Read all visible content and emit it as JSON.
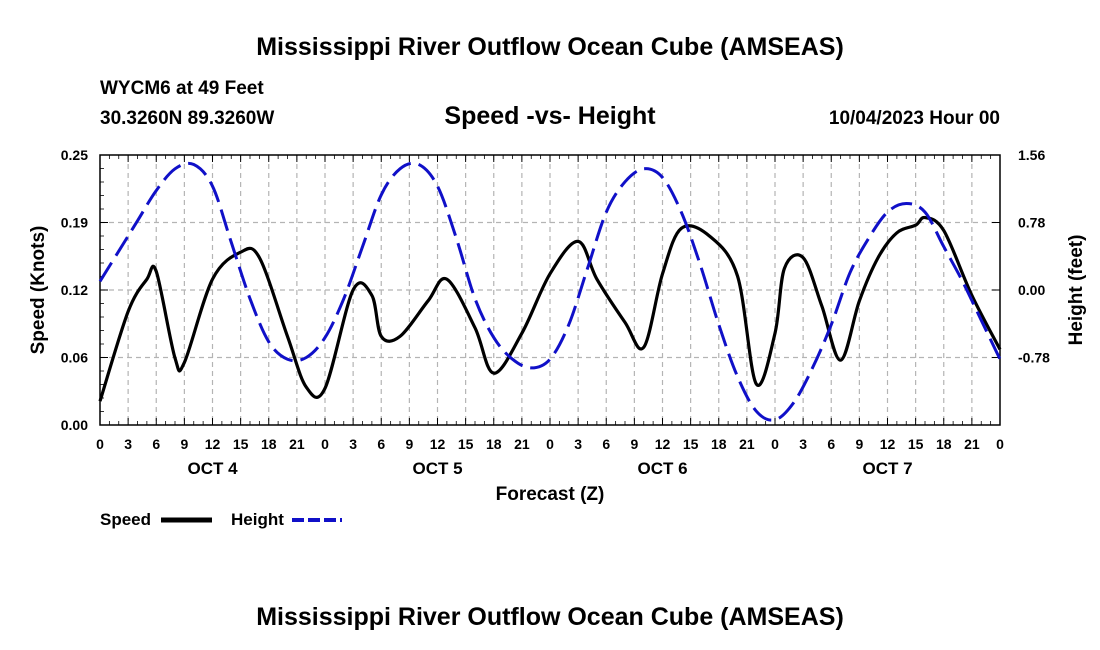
{
  "header": {
    "title": "Mississippi River Outflow Ocean Cube (AMSEAS)",
    "station": "WYCM6 at 49 Feet",
    "location": "30.3260N  89.3260W",
    "subtitle": "Speed -vs- Height",
    "datetime": "10/04/2023 Hour 00"
  },
  "footer": {
    "title": "Mississippi River Outflow Ocean Cube (AMSEAS)"
  },
  "legend": {
    "speed_label": "Speed",
    "height_label": "Height"
  },
  "colors": {
    "speed": "#000000",
    "height": "#1010c8",
    "grid": "#b4b4b4"
  },
  "chart_data": {
    "type": "line",
    "title": "Speed -vs- Height",
    "xlabel": "Forecast (Z)",
    "ylabel": "Speed (Knots)",
    "ylabel_right": "Height (feet)",
    "xlim": [
      0,
      96
    ],
    "ylim": [
      0,
      0.25
    ],
    "ylim_right": [
      -1.56,
      1.56
    ],
    "grid": true,
    "x_tick_labels": [
      "0",
      "3",
      "6",
      "9",
      "12",
      "15",
      "18",
      "21",
      "0",
      "3",
      "6",
      "9",
      "12",
      "15",
      "18",
      "21",
      "0",
      "3",
      "6",
      "9",
      "12",
      "15",
      "18",
      "21",
      "0",
      "3",
      "6",
      "9",
      "12",
      "15",
      "18",
      "21",
      "0"
    ],
    "y_tick_labels": [
      "0.00",
      "0.06",
      "0.12",
      "0.19",
      "0.25"
    ],
    "y_tick_labels_right": [
      "-0.78",
      "0.00",
      "0.78",
      "1.56"
    ],
    "days": [
      {
        "label": "OCT 4",
        "center_hour": 12
      },
      {
        "label": "OCT 5",
        "center_hour": 36
      },
      {
        "label": "OCT 6",
        "center_hour": 60
      },
      {
        "label": "OCT 7",
        "center_hour": 84
      }
    ],
    "series": [
      {
        "name": "Speed",
        "axis": "left",
        "style": "solid",
        "x": [
          0,
          3,
          5,
          6,
          8,
          9,
          12,
          15,
          17,
          20,
          22,
          24,
          27,
          29,
          30,
          32,
          35,
          37,
          40,
          42,
          45,
          48,
          51,
          53,
          56,
          58,
          60,
          62,
          65,
          68,
          70,
          72,
          73,
          75,
          77,
          79,
          81,
          83,
          85,
          87,
          88,
          90,
          93,
          96
        ],
        "values": [
          0.022,
          0.105,
          0.135,
          0.142,
          0.062,
          0.058,
          0.135,
          0.16,
          0.155,
          0.082,
          0.035,
          0.034,
          0.125,
          0.12,
          0.082,
          0.082,
          0.115,
          0.135,
          0.09,
          0.048,
          0.085,
          0.14,
          0.17,
          0.135,
          0.095,
          0.072,
          0.14,
          0.182,
          0.175,
          0.138,
          0.038,
          0.085,
          0.145,
          0.155,
          0.11,
          0.06,
          0.115,
          0.155,
          0.178,
          0.185,
          0.192,
          0.18,
          0.12,
          0.07
        ]
      },
      {
        "name": "Height",
        "axis": "right",
        "style": "dashed",
        "x": [
          0,
          2,
          4,
          6,
          8,
          10,
          12,
          14,
          16,
          18,
          20,
          22,
          24,
          26,
          28,
          30,
          32,
          34,
          36,
          38,
          40,
          42,
          44,
          46,
          48,
          50,
          52,
          54,
          56,
          58,
          60,
          62,
          64,
          66,
          68,
          70,
          72,
          74,
          76,
          78,
          80,
          82,
          84,
          86,
          88,
          90,
          92,
          94,
          96
        ],
        "values": [
          0.1,
          0.45,
          0.8,
          1.15,
          1.4,
          1.45,
          1.2,
          0.55,
          -0.1,
          -0.6,
          -0.8,
          -0.78,
          -0.55,
          -0.1,
          0.5,
          1.1,
          1.4,
          1.45,
          1.2,
          0.6,
          -0.1,
          -0.55,
          -0.8,
          -0.9,
          -0.8,
          -0.4,
          0.25,
          0.9,
          1.25,
          1.4,
          1.3,
          0.9,
          0.3,
          -0.4,
          -1.0,
          -1.4,
          -1.5,
          -1.3,
          -0.9,
          -0.4,
          0.2,
          0.6,
          0.9,
          1.0,
          0.9,
          0.5,
          0.1,
          -0.35,
          -0.8
        ]
      }
    ]
  }
}
